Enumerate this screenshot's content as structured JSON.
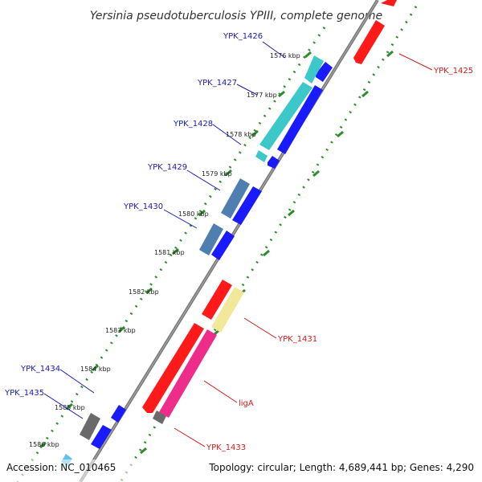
{
  "title": "Yersinia pseudotuberculosis YPIII, complete genome",
  "footer": {
    "accession": "Accession: NC_010465",
    "summary": "Topology: circular; Length: 4,689,441 bp; Genes: 4,290"
  },
  "colors": {
    "backbone": "#7a7a7a",
    "tick": "#2e8b2e",
    "gene_blue": "#1a1aff",
    "gene_red": "#ff1a1a",
    "label_blue": "#1a1ab3",
    "label_red": "#d11a1a",
    "cds_cyan": "#3cc8c8",
    "cds_steel": "#4f7fb0",
    "cds_pink": "#ee2d8a",
    "cds_khaki": "#f2e89a",
    "cds_gray": "#6a6a6a"
  },
  "scale_labels": [
    "1576 kbp",
    "1577 kbp",
    "1578 kbp",
    "1579 kbp",
    "1580 kbp",
    "1581 kbp",
    "1582 kbp",
    "1583 kbp",
    "1584 kbp",
    "1585 kbp",
    "1586 kbp"
  ],
  "gene_labels_left": [
    "YPK_1426",
    "YPK_1427",
    "YPK_1428",
    "YPK_1429",
    "YPK_1430",
    "YPK_1434",
    "YPK_1435"
  ],
  "gene_labels_right": [
    "YPK_1425",
    "YPK_1431",
    "ligA",
    "YPK_1433"
  ]
}
